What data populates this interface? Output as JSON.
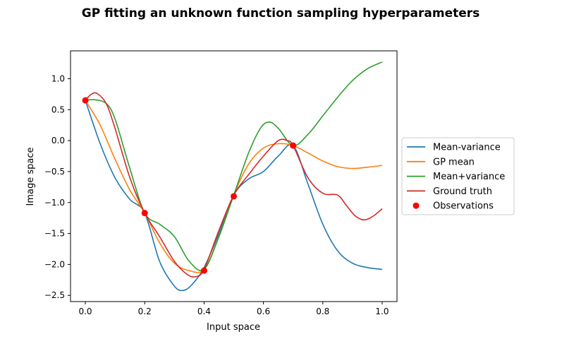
{
  "chart_data": {
    "type": "line",
    "title": "GP fitting an unknown function sampling hyperparameters",
    "xlabel": "Input space",
    "ylabel": "Image space",
    "xlim": [
      -0.05,
      1.05
    ],
    "ylim": [
      -2.6,
      1.45
    ],
    "xticks": [
      0.0,
      0.2,
      0.4,
      0.6,
      0.8,
      1.0
    ],
    "xtick_labels": [
      "0.0",
      "0.2",
      "0.4",
      "0.6",
      "0.8",
      "1.0"
    ],
    "yticks": [
      -2.5,
      -2.0,
      -1.5,
      -1.0,
      -0.5,
      0.0,
      0.5,
      1.0
    ],
    "ytick_labels": [
      "−2.5",
      "−2.0",
      "−1.5",
      "−1.0",
      "−0.5",
      "0.0",
      "0.5",
      "1.0"
    ],
    "grid": false,
    "legend_position": "center-right-outside",
    "series": [
      {
        "name": "Mean-variance",
        "color": "#1f77b4",
        "x": [
          0.0,
          0.05,
          0.1,
          0.15,
          0.2,
          0.25,
          0.3,
          0.33,
          0.36,
          0.4,
          0.45,
          0.5,
          0.55,
          0.6,
          0.65,
          0.7,
          0.75,
          0.8,
          0.85,
          0.9,
          0.95,
          1.0
        ],
        "y": [
          0.65,
          -0.05,
          -0.6,
          -0.95,
          -1.17,
          -1.95,
          -2.35,
          -2.42,
          -2.32,
          -2.05,
          -1.5,
          -0.88,
          -0.62,
          -0.5,
          -0.25,
          -0.08,
          -0.7,
          -1.35,
          -1.78,
          -1.98,
          -2.05,
          -2.08
        ]
      },
      {
        "name": "GP mean",
        "color": "#ff7f0e",
        "x": [
          0.0,
          0.05,
          0.1,
          0.15,
          0.2,
          0.25,
          0.3,
          0.35,
          0.4,
          0.45,
          0.5,
          0.55,
          0.6,
          0.65,
          0.7,
          0.75,
          0.8,
          0.85,
          0.9,
          0.95,
          1.0
        ],
        "y": [
          0.65,
          0.25,
          -0.3,
          -0.8,
          -1.17,
          -1.65,
          -1.98,
          -2.1,
          -2.08,
          -1.55,
          -0.88,
          -0.38,
          -0.12,
          -0.05,
          -0.08,
          -0.2,
          -0.33,
          -0.42,
          -0.45,
          -0.43,
          -0.4
        ]
      },
      {
        "name": "Mean+variance",
        "color": "#2ca02c",
        "x": [
          0.0,
          0.03,
          0.07,
          0.1,
          0.15,
          0.2,
          0.25,
          0.3,
          0.35,
          0.4,
          0.45,
          0.5,
          0.55,
          0.59,
          0.62,
          0.65,
          0.7,
          0.75,
          0.8,
          0.85,
          0.9,
          0.95,
          1.0
        ],
        "y": [
          0.65,
          0.66,
          0.6,
          0.35,
          -0.45,
          -1.17,
          -1.35,
          -1.55,
          -1.95,
          -2.08,
          -1.55,
          -0.88,
          -0.2,
          0.2,
          0.3,
          0.2,
          -0.08,
          0.1,
          0.4,
          0.7,
          0.97,
          1.16,
          1.27
        ]
      },
      {
        "name": "Ground truth",
        "color": "#d62728",
        "x": [
          0.0,
          0.02,
          0.04,
          0.07,
          0.1,
          0.15,
          0.2,
          0.25,
          0.3,
          0.34,
          0.37,
          0.4,
          0.45,
          0.5,
          0.55,
          0.6,
          0.65,
          0.68,
          0.7,
          0.75,
          0.8,
          0.85,
          0.88,
          0.91,
          0.94,
          0.97,
          1.0
        ],
        "y": [
          0.65,
          0.75,
          0.76,
          0.6,
          0.2,
          -0.6,
          -1.17,
          -1.55,
          -1.95,
          -2.15,
          -2.2,
          -2.08,
          -1.45,
          -0.88,
          -0.55,
          -0.25,
          0.0,
          0.0,
          -0.08,
          -0.6,
          -0.85,
          -0.88,
          -1.05,
          -1.22,
          -1.28,
          -1.22,
          -1.1
        ]
      }
    ],
    "observations": {
      "name": "Observations",
      "color": "#ff0000",
      "x": [
        0.0,
        0.2,
        0.4,
        0.5,
        0.7
      ],
      "y": [
        0.65,
        -1.17,
        -2.1,
        -0.9,
        -0.08
      ]
    }
  }
}
